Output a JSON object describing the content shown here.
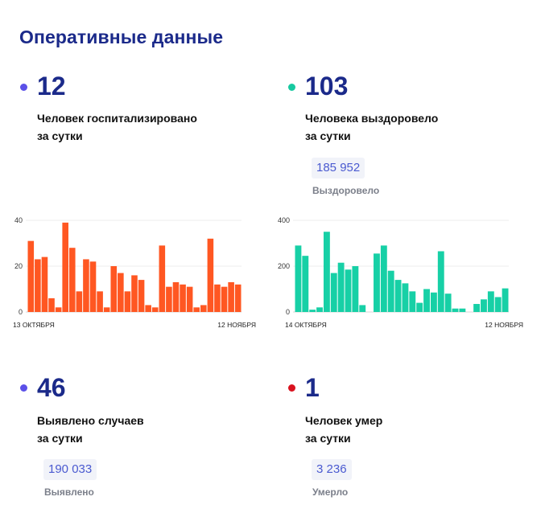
{
  "page": {
    "title": "Оперативные данные"
  },
  "stats": {
    "hospitalized": {
      "value": "12",
      "label_line1": "Человек госпитализировано",
      "label_line2": "за сутки",
      "dot_color": "#5b50e8"
    },
    "recovered": {
      "value": "103",
      "label_line1": "Человека выздоровело",
      "label_line2": "за сутки",
      "total": "185 952",
      "total_caption": "Выздоровело",
      "dot_color": "#17c9a0"
    },
    "cases": {
      "value": "46",
      "label_line1": "Выявлено случаев",
      "label_line2": "за сутки",
      "total": "190 033",
      "total_caption": "Выявлено",
      "dot_color": "#5b50e8"
    },
    "deaths": {
      "value": "1",
      "label_line1": "Человек умер",
      "label_line2": "за сутки",
      "total": "3 236",
      "total_caption": "Умерло",
      "dot_color": "#d9121f"
    }
  },
  "chart_data": [
    {
      "type": "bar",
      "color": "#ff5722",
      "ylim": [
        0,
        40
      ],
      "yticks": [
        "0",
        "20",
        "40"
      ],
      "x_start_label": "13 ОКТЯБРЯ",
      "x_end_label": "12 НОЯБРЯ",
      "values": [
        31,
        23,
        24,
        6,
        2,
        39,
        28,
        9,
        23,
        22,
        9,
        2,
        20,
        17,
        9,
        16,
        14,
        3,
        2,
        29,
        11,
        13,
        12,
        11,
        2,
        3,
        32,
        12,
        11,
        13,
        12
      ],
      "grid": true
    },
    {
      "type": "bar",
      "color": "#17d0a6",
      "ylim": [
        0,
        400
      ],
      "yticks": [
        "0",
        "200",
        "400"
      ],
      "x_start_label": "14 ОКТЯБРЯ",
      "x_end_label": "12 НОЯБРЯ",
      "values": [
        290,
        245,
        10,
        20,
        350,
        170,
        215,
        185,
        200,
        30,
        0,
        255,
        290,
        180,
        140,
        125,
        90,
        40,
        100,
        85,
        265,
        80,
        15,
        15,
        0,
        35,
        55,
        90,
        65,
        103
      ],
      "grid": true
    }
  ]
}
